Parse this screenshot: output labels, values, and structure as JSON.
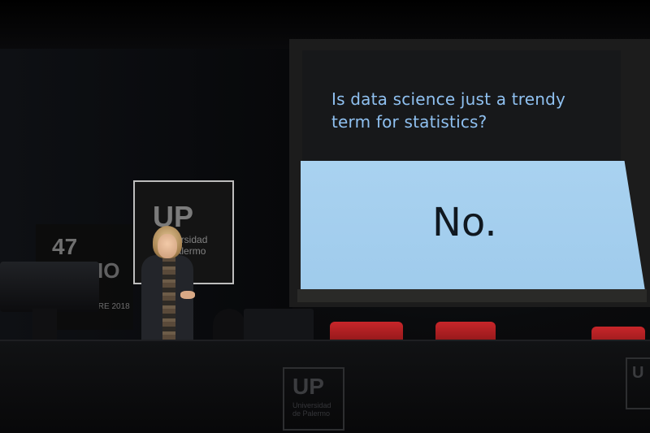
{
  "slide": {
    "question": "Is data science just a trendy term for statistics?",
    "answer": "No."
  },
  "banners": {
    "main_logo": "UP",
    "main_sub_line1": "Universidad",
    "main_sub_line2": "de Palermo",
    "side_number": "47",
    "side_text": "IO",
    "side_date": "IRE 2018"
  },
  "desk": {
    "logo": "UP",
    "logo_sub_line1": "Universidad",
    "logo_sub_line2": "de Palermo",
    "right_logo": "U"
  },
  "laptop": {
    "icon": "apple-logo-icon",
    "glyph": ""
  },
  "colors": {
    "slide_top_bg": "#17181a",
    "slide_bottom_bg": "#a9d2f0",
    "question_text": "#8fc0f0",
    "answer_text": "#101820",
    "chairs": "#c8262a"
  }
}
